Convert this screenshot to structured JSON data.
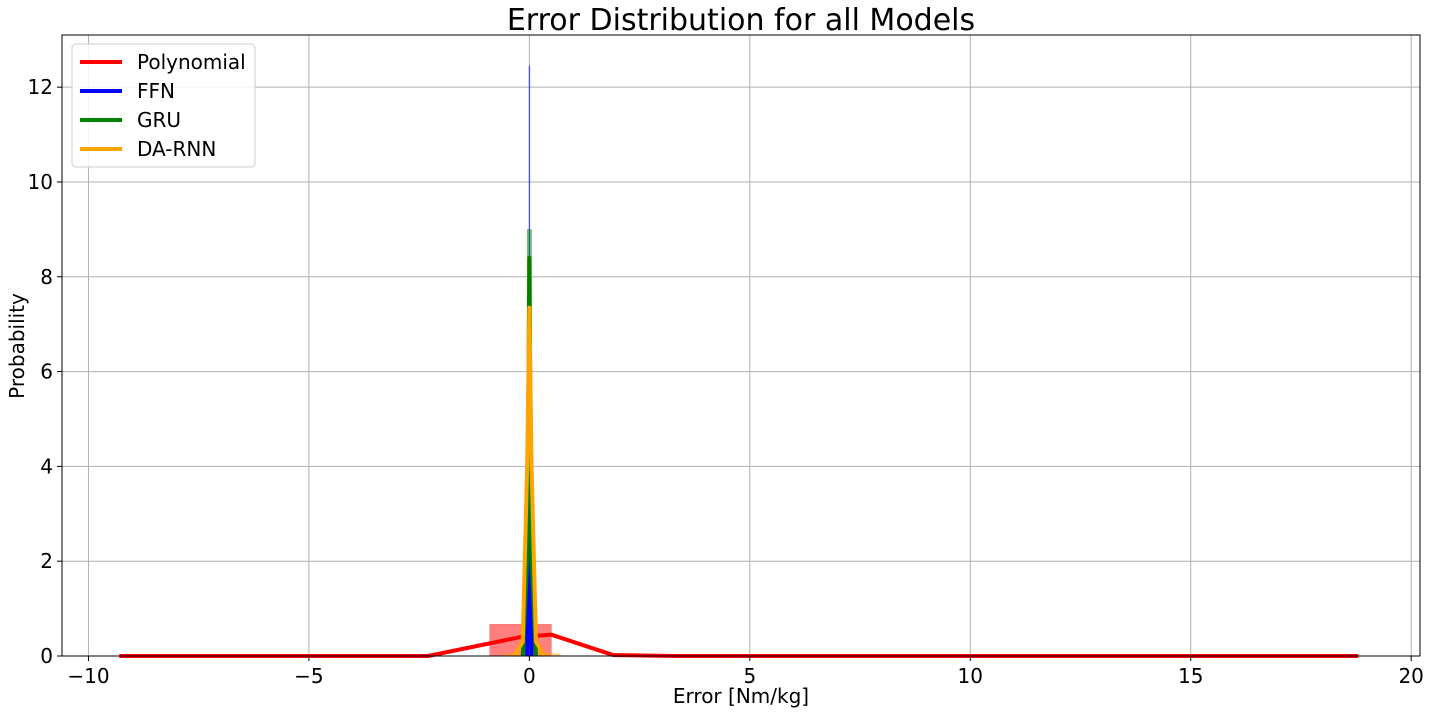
{
  "chart_data": {
    "type": "line",
    "title": "Error Distribution for all Models",
    "xlabel": "Error [Nm/kg]",
    "ylabel": "Probability",
    "xlim": [
      -10.6,
      20.2
    ],
    "ylim": [
      0,
      13.1
    ],
    "xticks": [
      -10,
      -5,
      0,
      5,
      10,
      15,
      20
    ],
    "yticks": [
      0,
      2,
      4,
      6,
      8,
      10,
      12
    ],
    "grid": true,
    "legend_position": "top-left",
    "series": [
      {
        "name": "Polynomial",
        "color": "#ff0000",
        "line": {
          "x": [
            -9.3,
            -2.3,
            -0.2,
            0.5,
            1.9,
            3.3,
            18.8
          ],
          "y": [
            0.0,
            0.0,
            0.4,
            0.45,
            0.02,
            0.0,
            0.0
          ]
        },
        "hist": {
          "bin_edges": [
            -0.9,
            0.5
          ],
          "heights": [
            0.67
          ]
        }
      },
      {
        "name": "FFN",
        "color": "#0000ff",
        "line": {
          "x": [
            -0.05,
            -0.01,
            0.0,
            0.01,
            0.05
          ],
          "y": [
            0.0,
            3.0,
            6.7,
            3.0,
            0.0
          ]
        },
        "hist": {
          "bin_edges": [
            -0.05,
            -0.03,
            -0.01,
            0.01,
            0.03,
            0.05
          ],
          "heights": [
            0.3,
            2.0,
            12.45,
            2.0,
            0.3
          ]
        }
      },
      {
        "name": "GRU",
        "color": "#008000",
        "line": {
          "x": [
            -0.15,
            -0.05,
            0.0,
            0.05,
            0.15
          ],
          "y": [
            0.0,
            2.0,
            8.4,
            2.0,
            0.0
          ]
        },
        "hist": {
          "bin_edges": [
            -0.15,
            -0.05,
            0.05,
            0.15
          ],
          "heights": [
            0.5,
            9.0,
            0.5
          ]
        }
      },
      {
        "name": "DA-RNN",
        "color": "#ffa500",
        "line": {
          "x": [
            -0.35,
            -0.15,
            -0.05,
            0.0,
            0.05,
            0.15,
            0.35
          ],
          "y": [
            0.0,
            0.3,
            4.0,
            7.35,
            4.0,
            0.3,
            0.0
          ]
        },
        "hist": {
          "bin_edges": [
            -0.6,
            -0.2,
            -0.05,
            0.05,
            0.2,
            0.7
          ],
          "heights": [
            0.05,
            0.35,
            8.4,
            0.35,
            0.05
          ]
        }
      }
    ]
  }
}
